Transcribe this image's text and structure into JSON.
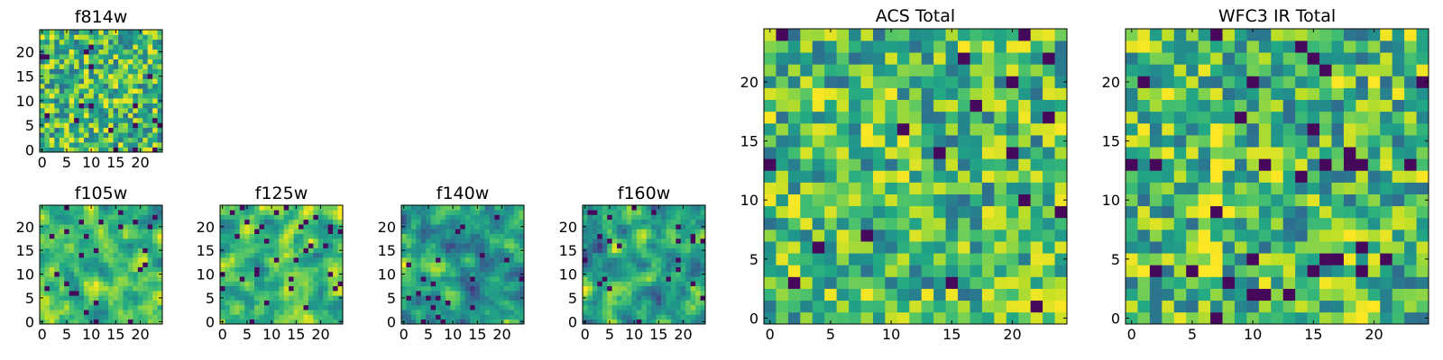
{
  "chart_data": [
    {
      "type": "heatmap",
      "id": "f814w",
      "title": "f814w",
      "xticks": [
        0,
        5,
        10,
        15,
        20
      ],
      "yticks": [
        0,
        5,
        10,
        15,
        20
      ],
      "xlim": [
        -0.5,
        24.5
      ],
      "ylim": [
        -0.5,
        24.5
      ],
      "grid_size": 25,
      "colormap": "viridis",
      "pattern": "uniform-noise-bright",
      "seed": 814
    },
    {
      "type": "heatmap",
      "id": "f105w",
      "title": "f105w",
      "xticks": [
        0,
        5,
        10,
        15,
        20
      ],
      "yticks": [
        0,
        5,
        10,
        15,
        20
      ],
      "xlim": [
        -0.5,
        24.5
      ],
      "ylim": [
        -0.5,
        24.5
      ],
      "grid_size": 25,
      "colormap": "viridis",
      "pattern": "smoothed-noise-bright",
      "seed": 105
    },
    {
      "type": "heatmap",
      "id": "f125w",
      "title": "f125w",
      "xticks": [
        0,
        5,
        10,
        15,
        20
      ],
      "yticks": [
        0,
        5,
        10,
        15,
        20
      ],
      "xlim": [
        -0.5,
        24.5
      ],
      "ylim": [
        -0.5,
        24.5
      ],
      "grid_size": 25,
      "colormap": "viridis",
      "pattern": "smoothed-noise-bright",
      "seed": 125
    },
    {
      "type": "heatmap",
      "id": "f140w",
      "title": "f140w",
      "xticks": [
        0,
        5,
        10,
        15,
        20
      ],
      "yticks": [
        0,
        5,
        10,
        15,
        20
      ],
      "xlim": [
        -0.5,
        24.5
      ],
      "ylim": [
        -0.5,
        24.5
      ],
      "grid_size": 25,
      "colormap": "viridis",
      "pattern": "smoothed-noise",
      "seed": 140
    },
    {
      "type": "heatmap",
      "id": "f160w",
      "title": "f160w",
      "xticks": [
        0,
        5,
        10,
        15,
        20
      ],
      "yticks": [
        0,
        5,
        10,
        15,
        20
      ],
      "xlim": [
        -0.5,
        24.5
      ],
      "ylim": [
        -0.5,
        24.5
      ],
      "grid_size": 25,
      "colormap": "viridis",
      "pattern": "smoothed-noise",
      "seed": 160
    },
    {
      "type": "heatmap",
      "id": "acs_total",
      "title": "ACS Total",
      "xticks": [
        0,
        5,
        10,
        15,
        20
      ],
      "yticks": [
        0,
        5,
        10,
        15,
        20
      ],
      "xlim": [
        -0.5,
        24.5
      ],
      "ylim": [
        -0.5,
        24.5
      ],
      "grid_size": 25,
      "colormap": "viridis",
      "pattern": "uniform-noise-bright",
      "seed": 999
    },
    {
      "type": "heatmap",
      "id": "wfc3_ir_total",
      "title": "WFC3 IR Total",
      "xticks": [
        0,
        5,
        10,
        15,
        20
      ],
      "yticks": [
        0,
        5,
        10,
        15,
        20
      ],
      "xlim": [
        -0.5,
        24.5
      ],
      "ylim": [
        -0.5,
        24.5
      ],
      "grid_size": 25,
      "colormap": "viridis",
      "pattern": "dark-with-bright-streak",
      "seed": 3,
      "bright_cells": [
        [
          7,
          16
        ],
        [
          7,
          15
        ],
        [
          7,
          14
        ],
        [
          7,
          13
        ],
        [
          7,
          12
        ],
        [
          7,
          11
        ],
        [
          7,
          10
        ],
        [
          6,
          9
        ],
        [
          6,
          8
        ],
        [
          6,
          7
        ],
        [
          6,
          6
        ],
        [
          6,
          5
        ],
        [
          6,
          4
        ],
        [
          12,
          12
        ],
        [
          12,
          11
        ],
        [
          8,
          9
        ],
        [
          19,
          0
        ],
        [
          20,
          0
        ],
        [
          20,
          1
        ]
      ]
    }
  ]
}
